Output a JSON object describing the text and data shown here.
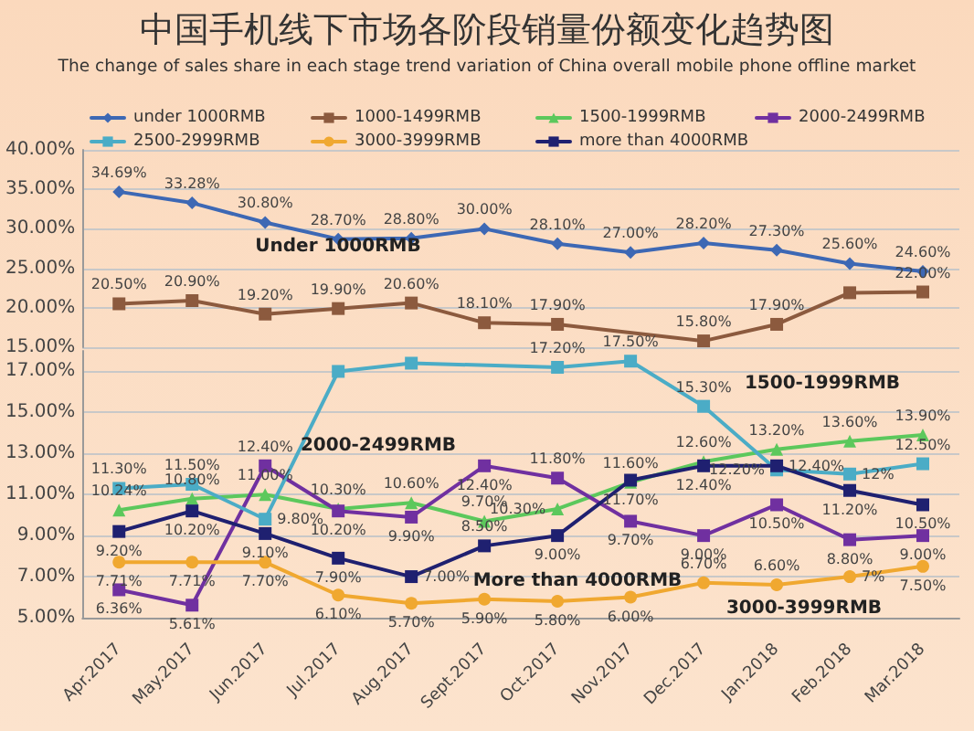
{
  "chart_data": [
    {
      "type": "line",
      "title": "中国手机线下市场各阶段销量份额变化趋势图",
      "subtitle": "The change of sales share in each stage trend variation of China overall mobile phone offline market",
      "categories": [
        null,
        null,
        null,
        null,
        null,
        null,
        null,
        null,
        null,
        null,
        null,
        null
      ],
      "series": [
        {
          "name": "under 1000RMB",
          "color": "#3d68b4",
          "marker": "diamond",
          "values": [
            34.69,
            33.28,
            30.8,
            28.7,
            28.8,
            30.0,
            28.1,
            27.0,
            28.2,
            27.3,
            25.6,
            24.6
          ],
          "value_labels": [
            "34.69%",
            "33.28%",
            "30.80%",
            "28.70%",
            "28.80%",
            "30.00%",
            "28.10%",
            "27.00%",
            "28.20%",
            "27.30%",
            "25.60%",
            "24.60%"
          ]
        },
        {
          "name": "1000-1499RMB",
          "color": "#8c5a3e",
          "marker": "square",
          "values": [
            20.5,
            20.9,
            19.2,
            19.9,
            20.6,
            18.1,
            17.9,
            null,
            15.8,
            17.9,
            21.9,
            22.0
          ],
          "value_labels": [
            "20.50%",
            "20.90%",
            "19.20%",
            "19.90%",
            "20.60%",
            "18.10%",
            "17.90%",
            null,
            "15.80%",
            "17.90%",
            null,
            "22.00%"
          ]
        }
      ],
      "ylim": [
        15,
        40
      ],
      "yticks": [
        {
          "value": 15,
          "label": "15.00%"
        },
        {
          "value": 20,
          "label": "20.00%"
        },
        {
          "value": 25,
          "label": "25.00%"
        },
        {
          "value": 30,
          "label": "30.00%"
        },
        {
          "value": 35,
          "label": "35.00%"
        },
        {
          "value": 40,
          "label": "40.00%"
        }
      ],
      "grid": "y",
      "legend": "top",
      "tick_labels": "y",
      "annotations": [
        "Under 1000RMB"
      ]
    },
    {
      "type": "line",
      "categories": [
        "Apr.2017",
        "May.2017",
        "Jun.2017",
        "Jul.2017",
        "Aug.2017",
        "Sept.2017",
        "Oct.2017",
        "Nov.2017",
        "Dec.2017",
        "Jan.2018",
        "Feb.2018",
        "Mar.2018"
      ],
      "series": [
        {
          "name": "1500-1999RMB",
          "color": "#5cc85c",
          "marker": "triangle",
          "values": [
            10.24,
            10.8,
            11.0,
            10.3,
            10.6,
            9.7,
            10.3,
            11.6,
            12.6,
            13.2,
            13.6,
            13.9
          ],
          "value_labels": [
            "10.24%",
            "10.80%",
            "11.00%",
            "10.30%",
            "10.60%",
            "9.70%",
            "10.30%",
            "11.60%",
            "12.60%",
            "13.20%",
            "13.60%",
            "13.90%"
          ]
        },
        {
          "name": "2000-2499RMB",
          "color": "#7030a0",
          "marker": "square",
          "values": [
            6.36,
            5.61,
            12.4,
            10.2,
            9.9,
            12.4,
            11.8,
            9.7,
            9.0,
            10.5,
            8.8,
            9.0
          ],
          "value_labels": [
            "6.36%",
            "5.61%",
            "12.40%",
            "10.20%",
            "9.90%",
            "12.40%",
            "11.80%",
            "9.70%",
            "9.00%",
            "10.50%",
            "8.80%",
            "9.00%"
          ]
        },
        {
          "name": "2500-2999RMB",
          "color": "#4bacc6",
          "marker": "square",
          "values": [
            11.3,
            11.5,
            9.8,
            17.0,
            17.4,
            null,
            17.2,
            17.5,
            15.3,
            12.2,
            12.0,
            12.5
          ],
          "value_labels": [
            "11.30%",
            "11.50%",
            "9.80%",
            null,
            null,
            null,
            "17.20%",
            "17.50%",
            "15.30%",
            "12.20%",
            "12%",
            "12.50%"
          ]
        },
        {
          "name": "3000-3999RMB",
          "color": "#f0a830",
          "marker": "circle",
          "values": [
            7.71,
            7.71,
            7.7,
            6.1,
            5.7,
            5.9,
            5.8,
            6.0,
            6.7,
            6.6,
            7.0,
            7.5
          ],
          "value_labels": [
            "7.71%",
            "7.71%",
            "7.70%",
            "6.10%",
            "5.70%",
            "5.90%",
            "5.80%",
            "6.00%",
            "6.70%",
            "6.60%",
            "7%",
            "7.50%"
          ]
        },
        {
          "name": "more than 4000RMB",
          "color": "#1f2070",
          "marker": "square",
          "values": [
            9.2,
            10.2,
            9.1,
            7.9,
            7.0,
            8.5,
            9.0,
            11.7,
            12.4,
            12.4,
            11.2,
            10.5
          ],
          "value_labels": [
            "9.20%",
            "10.20%",
            "9.10%",
            "7.90%",
            "7.00%",
            "8.50%",
            "9.00%",
            "11.70%",
            "12.40%",
            "12.40%",
            "11.20%",
            "10.50%"
          ]
        }
      ],
      "ylim": [
        5,
        18
      ],
      "yticks": [
        {
          "value": 5,
          "label": "5.00%"
        },
        {
          "value": 7,
          "label": "7.00%"
        },
        {
          "value": 9,
          "label": "9.00%"
        },
        {
          "value": 11,
          "label": "11.00%"
        },
        {
          "value": 13,
          "label": "13.00%"
        },
        {
          "value": 15,
          "label": "15.00%"
        },
        {
          "value": 17,
          "label": "17.00%"
        }
      ],
      "grid": "y",
      "legend": "top",
      "annotations": [
        "1500-1999RMB",
        "2000-2499RMB",
        "More than 4000RMB",
        "3000-3999RMB"
      ]
    }
  ]
}
